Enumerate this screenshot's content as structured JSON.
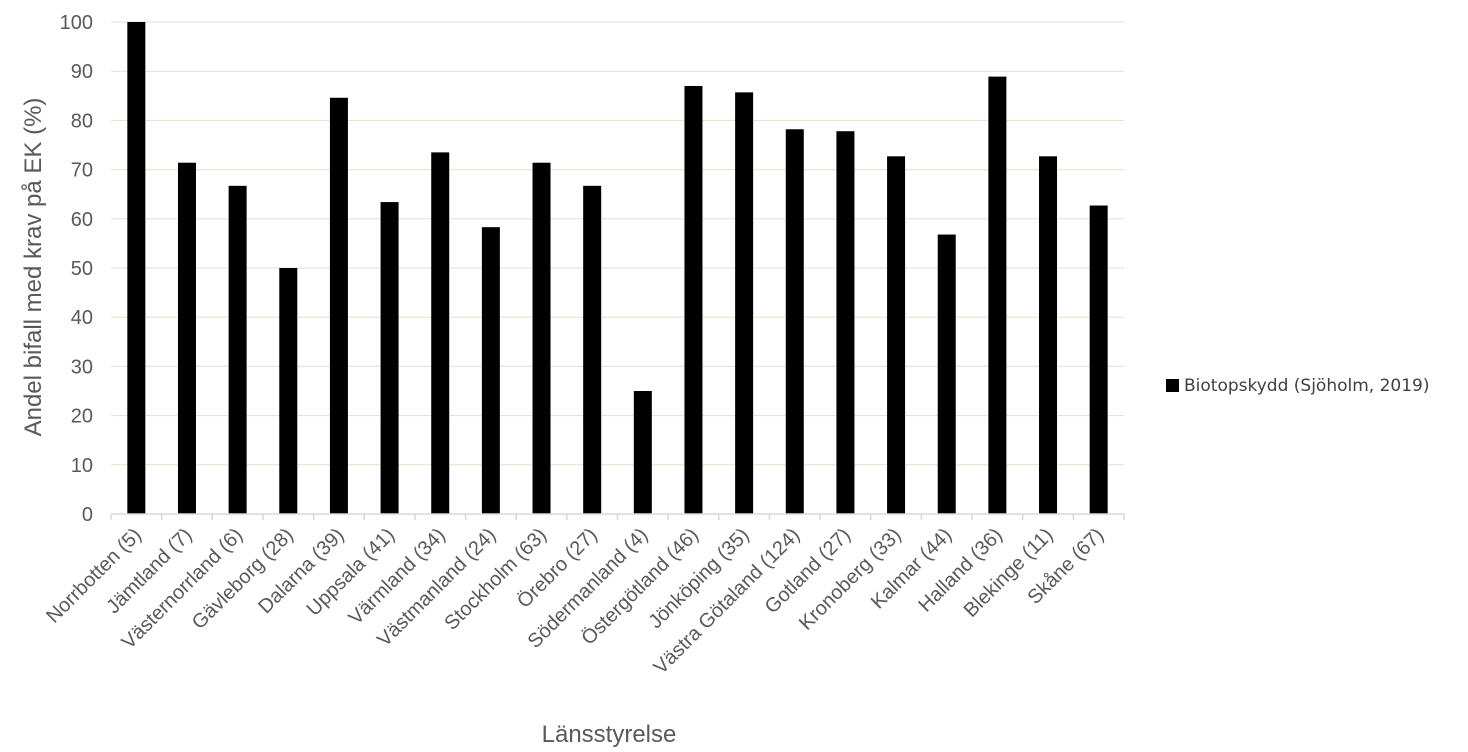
{
  "chart_data": {
    "type": "bar",
    "title": "",
    "xlabel": "Länsstyrelse",
    "ylabel": "Andel bifall med krav på EK (%)",
    "ylim": [
      0,
      100
    ],
    "yticks": [
      0,
      10,
      20,
      30,
      40,
      50,
      60,
      70,
      80,
      90,
      100
    ],
    "grid": true,
    "legend_position": "right",
    "categories": [
      "Norrbotten (5)",
      "Jämtland (7)",
      "Västernorrland (6)",
      "Gävleborg (28)",
      "Dalarna (39)",
      "Uppsala (41)",
      "Värmland (34)",
      "Västmanland (24)",
      "Stockholm (63)",
      "Örebro (27)",
      "Södermanland (4)",
      "Östergötland (46)",
      "Jönköping (35)",
      "Västra Götaland (124)",
      "Gotland (27)",
      "Kronoberg (33)",
      "Kalmar (44)",
      "Halland (36)",
      "Blekinge (11)",
      "Skåne (67)"
    ],
    "series": [
      {
        "name": "Biotopskydd (Sjöholm, 2019)",
        "color": "#000000",
        "values": [
          100,
          71.4,
          66.7,
          50,
          84.6,
          63.4,
          73.5,
          58.3,
          71.4,
          66.7,
          25,
          87,
          85.7,
          78.2,
          77.8,
          72.7,
          56.8,
          88.9,
          72.7,
          62.7
        ]
      }
    ]
  }
}
